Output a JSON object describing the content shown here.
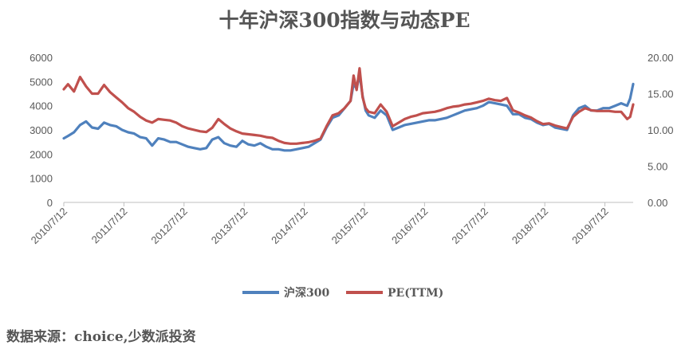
{
  "chart_data": {
    "type": "line",
    "title": "十年沪深300指数与动态PE",
    "x_tick_labels": [
      "2010/7/12",
      "2011/7/12",
      "2012/7/12",
      "2013/7/12",
      "2014/7/12",
      "2015/7/12",
      "2016/7/12",
      "2017/7/12",
      "2018/7/12",
      "2019/7/12"
    ],
    "y_left": {
      "ticks": [
        "0",
        "1000",
        "2000",
        "3000",
        "4000",
        "5000",
        "6000"
      ],
      "range": [
        0,
        6000
      ]
    },
    "y_right": {
      "ticks": [
        "0.00",
        "5.00",
        "10.00",
        "15.00",
        "20.00"
      ],
      "range": [
        0,
        20
      ]
    },
    "x_range": [
      2010.53,
      2020.0
    ],
    "grid": false,
    "legend_position": "bottom",
    "series": [
      {
        "name": "沪深300",
        "axis": "left",
        "color": "#4F81BD",
        "x": [
          2010.53,
          2010.6,
          2010.7,
          2010.8,
          2010.9,
          2011.0,
          2011.1,
          2011.2,
          2011.3,
          2011.4,
          2011.5,
          2011.6,
          2011.7,
          2011.8,
          2011.9,
          2012.0,
          2012.1,
          2012.2,
          2012.3,
          2012.4,
          2012.5,
          2012.6,
          2012.7,
          2012.8,
          2012.9,
          2013.0,
          2013.1,
          2013.2,
          2013.3,
          2013.4,
          2013.5,
          2013.6,
          2013.7,
          2013.8,
          2013.9,
          2014.0,
          2014.1,
          2014.2,
          2014.3,
          2014.4,
          2014.5,
          2014.6,
          2014.7,
          2014.8,
          2014.9,
          2015.0,
          2015.1,
          2015.2,
          2015.3,
          2015.35,
          2015.4,
          2015.45,
          2015.5,
          2015.55,
          2015.6,
          2015.7,
          2015.8,
          2015.9,
          2016.0,
          2016.1,
          2016.2,
          2016.3,
          2016.4,
          2016.5,
          2016.6,
          2016.7,
          2016.8,
          2016.9,
          2017.0,
          2017.1,
          2017.2,
          2017.3,
          2017.4,
          2017.5,
          2017.6,
          2017.7,
          2017.8,
          2017.9,
          2018.0,
          2018.1,
          2018.2,
          2018.3,
          2018.4,
          2018.5,
          2018.6,
          2018.7,
          2018.8,
          2018.9,
          2019.0,
          2019.1,
          2019.2,
          2019.3,
          2019.4,
          2019.5,
          2019.6,
          2019.7,
          2019.8,
          2019.9,
          2019.95,
          2020.0
        ],
        "values": [
          2650,
          2750,
          2900,
          3200,
          3350,
          3100,
          3050,
          3300,
          3200,
          3150,
          3000,
          2900,
          2850,
          2700,
          2650,
          2350,
          2650,
          2600,
          2500,
          2500,
          2400,
          2300,
          2250,
          2200,
          2250,
          2600,
          2700,
          2450,
          2350,
          2300,
          2550,
          2400,
          2350,
          2450,
          2300,
          2200,
          2200,
          2150,
          2150,
          2200,
          2250,
          2300,
          2450,
          2600,
          3100,
          3500,
          3600,
          3900,
          4200,
          4900,
          4700,
          5300,
          4400,
          3800,
          3600,
          3500,
          3800,
          3600,
          3000,
          3100,
          3200,
          3250,
          3300,
          3350,
          3400,
          3400,
          3450,
          3500,
          3600,
          3700,
          3800,
          3850,
          3900,
          4000,
          4150,
          4100,
          4050,
          4000,
          3650,
          3650,
          3500,
          3450,
          3300,
          3200,
          3250,
          3100,
          3050,
          3000,
          3600,
          3900,
          4000,
          3800,
          3800,
          3900,
          3900,
          4000,
          4100,
          4000,
          4300,
          4900
        ]
      },
      {
        "name": "PE(TTM)",
        "axis": "right",
        "color": "#C0504D",
        "x": [
          2010.53,
          2010.6,
          2010.7,
          2010.8,
          2010.9,
          2011.0,
          2011.1,
          2011.2,
          2011.3,
          2011.4,
          2011.5,
          2011.6,
          2011.7,
          2011.8,
          2011.9,
          2012.0,
          2012.1,
          2012.2,
          2012.3,
          2012.4,
          2012.5,
          2012.6,
          2012.7,
          2012.8,
          2012.9,
          2013.0,
          2013.1,
          2013.2,
          2013.3,
          2013.4,
          2013.5,
          2013.6,
          2013.7,
          2013.8,
          2013.9,
          2014.0,
          2014.1,
          2014.2,
          2014.3,
          2014.4,
          2014.5,
          2014.6,
          2014.7,
          2014.8,
          2014.9,
          2015.0,
          2015.1,
          2015.2,
          2015.3,
          2015.35,
          2015.4,
          2015.45,
          2015.5,
          2015.55,
          2015.6,
          2015.7,
          2015.8,
          2015.9,
          2016.0,
          2016.1,
          2016.2,
          2016.3,
          2016.4,
          2016.5,
          2016.6,
          2016.7,
          2016.8,
          2016.9,
          2017.0,
          2017.1,
          2017.2,
          2017.3,
          2017.4,
          2017.5,
          2017.6,
          2017.7,
          2017.8,
          2017.9,
          2018.0,
          2018.1,
          2018.2,
          2018.3,
          2018.4,
          2018.5,
          2018.6,
          2018.7,
          2018.8,
          2018.9,
          2019.0,
          2019.1,
          2019.2,
          2019.3,
          2019.4,
          2019.5,
          2019.6,
          2019.7,
          2019.8,
          2019.9,
          2019.95,
          2020.0
        ],
        "values": [
          15.6,
          16.3,
          15.3,
          17.3,
          16.0,
          15.0,
          15.0,
          16.2,
          15.2,
          14.5,
          13.8,
          13.0,
          12.5,
          11.8,
          11.3,
          11.0,
          11.5,
          11.4,
          11.3,
          11.0,
          10.5,
          10.2,
          10.0,
          9.8,
          9.7,
          10.3,
          11.5,
          10.8,
          10.2,
          9.8,
          9.5,
          9.4,
          9.3,
          9.2,
          9.0,
          8.9,
          8.5,
          8.2,
          8.1,
          8.1,
          8.2,
          8.3,
          8.5,
          8.8,
          10.5,
          12.0,
          12.3,
          13.0,
          14.0,
          17.5,
          15.5,
          18.5,
          14.5,
          13.0,
          12.5,
          12.3,
          13.5,
          12.5,
          10.5,
          11.0,
          11.5,
          11.8,
          12.0,
          12.3,
          12.4,
          12.5,
          12.7,
          13.0,
          13.2,
          13.3,
          13.5,
          13.6,
          13.8,
          14.0,
          14.3,
          14.1,
          14.0,
          14.4,
          12.7,
          12.4,
          12.0,
          11.7,
          11.2,
          10.8,
          10.9,
          10.6,
          10.4,
          10.2,
          11.8,
          12.5,
          13.0,
          12.7,
          12.6,
          12.6,
          12.6,
          12.5,
          12.5,
          11.5,
          11.8,
          13.5
        ]
      }
    ]
  },
  "source_note": "数据来源：choice,少数派投资"
}
